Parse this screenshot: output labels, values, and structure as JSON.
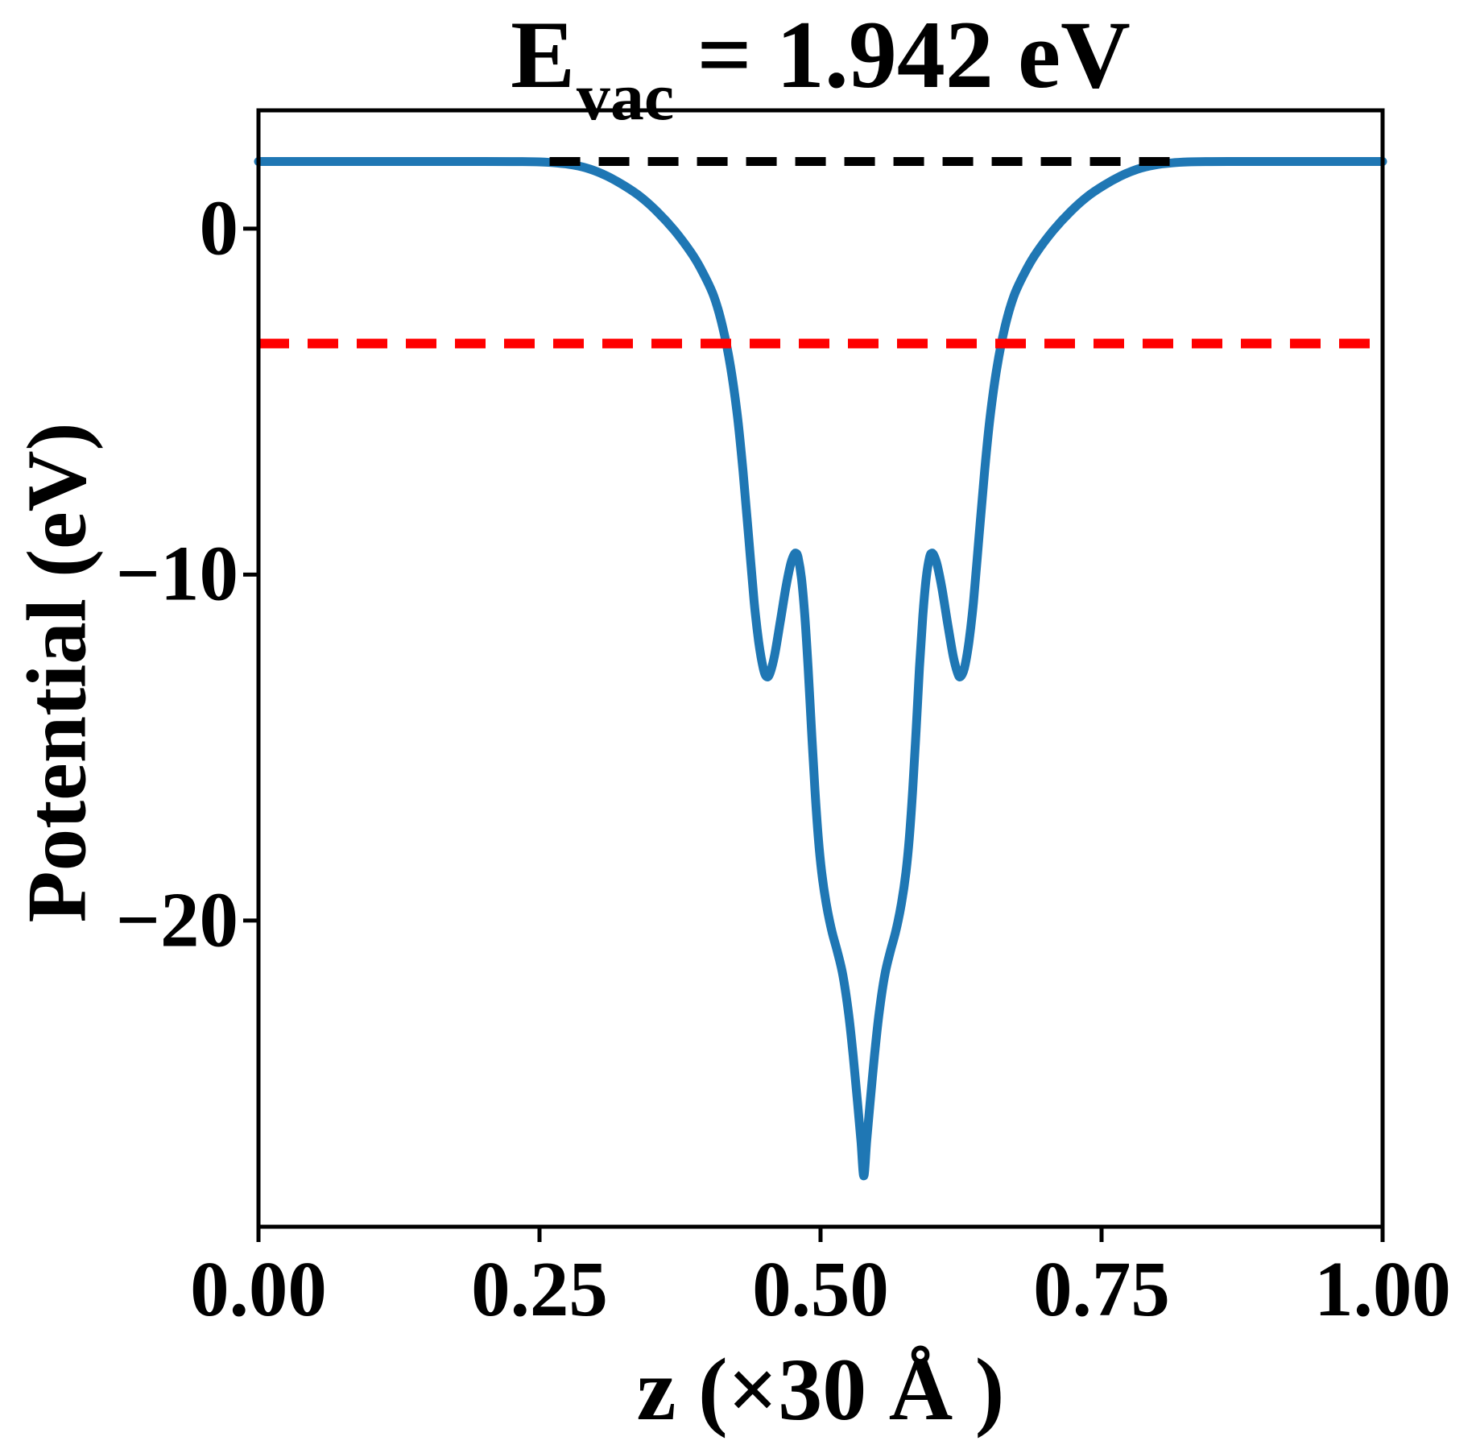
{
  "figure": {
    "title": {
      "prefix": "E",
      "subscript": "vac",
      "suffix": " = 1.942 eV"
    }
  },
  "chart_data": {
    "type": "line",
    "title": "E_vac = 1.942 eV",
    "xlabel": "z (×30 Å )",
    "ylabel": "Potential (eV)",
    "xlim": [
      0.0,
      1.0
    ],
    "ylim": [
      -28.85,
      3.42
    ],
    "grid": false,
    "legend": null,
    "xticks": {
      "values": [
        0.0,
        0.25,
        0.5,
        0.75,
        1.0
      ],
      "labels": [
        "0.00",
        "0.25",
        "0.50",
        "0.75",
        "1.00"
      ]
    },
    "yticks": {
      "values": [
        0,
        -10,
        -20
      ],
      "labels": [
        "0",
        "−10",
        "−20"
      ]
    },
    "colors": {
      "curve": "#1f77b4",
      "vacuum_level": "#000000",
      "fermi_level": "#ff0000"
    },
    "annotations": {
      "vacuum_energy_eV": 1.942
    },
    "series": [
      {
        "name": "planar-averaged-potential",
        "color": "#1f77b4",
        "line_style": "solid",
        "line_width": 11,
        "x": [
          0.0,
          0.05,
          0.1,
          0.15,
          0.2,
          0.23,
          0.25,
          0.265,
          0.28,
          0.295,
          0.31,
          0.325,
          0.34,
          0.355,
          0.37,
          0.385,
          0.395,
          0.405,
          0.413,
          0.42,
          0.426,
          0.431,
          0.436,
          0.441,
          0.445,
          0.449,
          0.452,
          0.455,
          0.459,
          0.464,
          0.469,
          0.473,
          0.476,
          0.478,
          0.48,
          0.483,
          0.486,
          0.489,
          0.492,
          0.495,
          0.498,
          0.501,
          0.505,
          0.51,
          0.515,
          0.52,
          0.525,
          0.529,
          0.533,
          0.536,
          0.5385,
          0.541,
          0.544,
          0.548,
          0.552,
          0.557,
          0.562,
          0.567,
          0.572,
          0.576,
          0.579,
          0.582,
          0.585,
          0.588,
          0.591,
          0.594,
          0.597,
          0.599,
          0.601,
          0.604,
          0.608,
          0.613,
          0.618,
          0.622,
          0.6245,
          0.628,
          0.632,
          0.636,
          0.641,
          0.646,
          0.651,
          0.657,
          0.664,
          0.672,
          0.682,
          0.692,
          0.707,
          0.722,
          0.737,
          0.752,
          0.767,
          0.782,
          0.797,
          0.812,
          0.827,
          0.847,
          0.877,
          0.92,
          0.96,
          1.0
        ],
        "y": [
          1.942,
          1.942,
          1.942,
          1.942,
          1.942,
          1.94,
          1.93,
          1.9,
          1.84,
          1.72,
          1.52,
          1.25,
          0.92,
          0.48,
          -0.05,
          -0.7,
          -1.25,
          -1.95,
          -2.85,
          -4.0,
          -5.4,
          -7.0,
          -8.9,
          -10.8,
          -11.95,
          -12.7,
          -12.95,
          -12.85,
          -12.35,
          -11.4,
          -10.4,
          -9.75,
          -9.45,
          -9.38,
          -9.5,
          -10.1,
          -11.2,
          -12.7,
          -14.5,
          -16.2,
          -17.6,
          -18.6,
          -19.5,
          -20.3,
          -20.9,
          -21.6,
          -22.7,
          -23.9,
          -25.3,
          -26.4,
          -27.38,
          -26.4,
          -25.3,
          -23.9,
          -22.7,
          -21.6,
          -20.9,
          -20.3,
          -19.5,
          -18.6,
          -17.6,
          -16.2,
          -14.5,
          -12.7,
          -11.2,
          -10.1,
          -9.5,
          -9.38,
          -9.45,
          -9.75,
          -10.4,
          -11.4,
          -12.35,
          -12.85,
          -12.95,
          -12.7,
          -11.95,
          -10.8,
          -8.9,
          -7.0,
          -5.4,
          -4.0,
          -2.85,
          -1.95,
          -1.25,
          -0.7,
          -0.05,
          0.48,
          0.92,
          1.25,
          1.52,
          1.72,
          1.84,
          1.9,
          1.93,
          1.94,
          1.942,
          1.942,
          1.942,
          1.942
        ]
      },
      {
        "name": "vacuum-level-line",
        "color": "#000000",
        "line_style": "dashed",
        "line_width": 11,
        "y_value": 1.942,
        "x_span": [
          0.259,
          0.816
        ]
      },
      {
        "name": "fermi-level-line",
        "color": "#ff0000",
        "line_style": "dashed",
        "line_width": 12,
        "y_value": -3.32,
        "x_span": [
          0.0,
          1.0
        ]
      }
    ]
  }
}
